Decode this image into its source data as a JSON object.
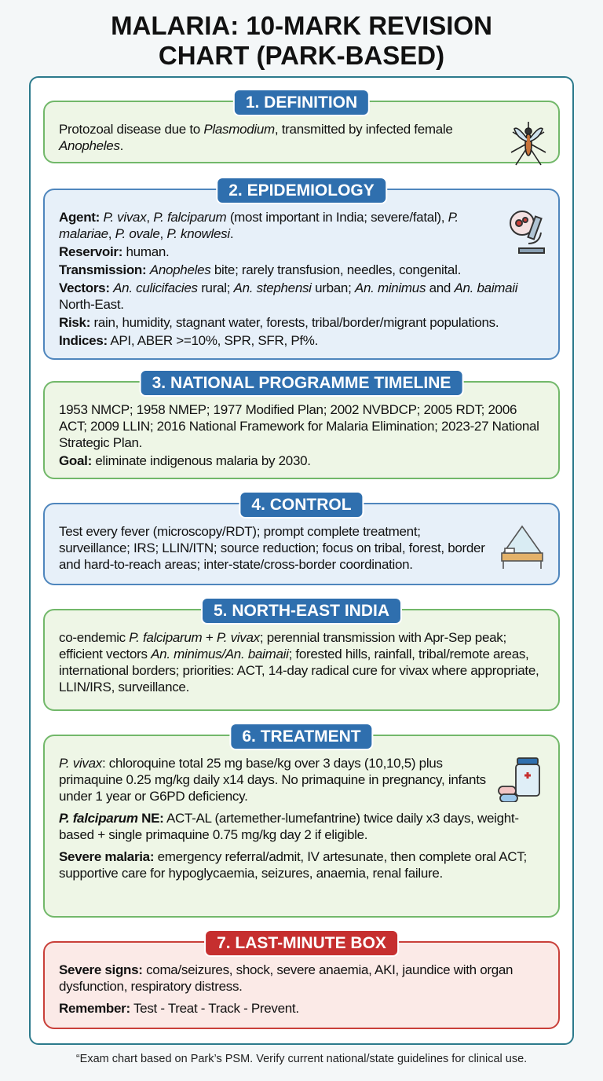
{
  "title": "MALARIA: 10-MARK REVISION CHART (PARK-BASED)",
  "sections": [
    {
      "heading": "1. DEFINITION",
      "paragraphs": [
        [
          {
            "text": "Protozoal disease due to "
          },
          {
            "text": "Plasmodium",
            "style": "italic"
          },
          {
            "text": ", transmitted by infected female "
          },
          {
            "text": "Anopheles",
            "style": "italic"
          },
          {
            "text": "."
          }
        ]
      ]
    },
    {
      "heading": "2. EPIDEMIOLOGY",
      "paragraphs": [
        [
          {
            "text": "Agent:",
            "style": "bold"
          },
          {
            "text": " "
          },
          {
            "text": "P. vivax",
            "style": "italic"
          },
          {
            "text": ", "
          },
          {
            "text": "P. falciparum",
            "style": "italic"
          },
          {
            "text": " (most important in India; severe/fatal), "
          },
          {
            "text": "P. malariae",
            "style": "italic"
          },
          {
            "text": ", "
          },
          {
            "text": "P. ovale",
            "style": "italic"
          },
          {
            "text": ", "
          },
          {
            "text": "P. knowlesi",
            "style": "italic"
          },
          {
            "text": "."
          }
        ],
        [
          {
            "text": "Reservoir:",
            "style": "bold"
          },
          {
            "text": " human."
          }
        ],
        [
          {
            "text": "Transmission:",
            "style": "bold"
          },
          {
            "text": " "
          },
          {
            "text": "Anopheles",
            "style": "italic"
          },
          {
            "text": " bite; rarely transfusion, needles, congenital."
          }
        ],
        [
          {
            "text": "Vectors:",
            "style": "bold"
          },
          {
            "text": " "
          },
          {
            "text": "An. culicifacies",
            "style": "italic"
          },
          {
            "text": " rural; "
          },
          {
            "text": "An. stephensi",
            "style": "italic"
          },
          {
            "text": " urban; "
          },
          {
            "text": "An. minimus",
            "style": "italic"
          },
          {
            "text": " and "
          },
          {
            "text": "An. baimaii",
            "style": "italic"
          },
          {
            "text": " North-East."
          }
        ],
        [
          {
            "text": "Risk:",
            "style": "bold"
          },
          {
            "text": " rain, humidity, stagnant water, forests, tribal/border/migrant populations."
          }
        ],
        [
          {
            "text": "Indices:",
            "style": "bold"
          },
          {
            "text": " API, ABER >=10%, SPR, SFR, Pf%."
          }
        ]
      ]
    },
    {
      "heading": "3. NATIONAL PROGRAMME TIMELINE",
      "paragraphs": [
        [
          {
            "text": "1953 NMCP; 1958 NMEP; 1977 Modified Plan; 2002 NVBDCP; 2005 RDT; 2006 ACT; 2009 LLIN; 2016 National Framework for Malaria Elimination; 2023-27 National Strategic Plan."
          }
        ],
        [
          {
            "text": "Goal:",
            "style": "bold"
          },
          {
            "text": " eliminate indigenous malaria by 2030."
          }
        ]
      ]
    },
    {
      "heading": "4. CONTROL",
      "paragraphs": [
        [
          {
            "text": "Test every fever (microscopy/RDT); prompt complete treatment; surveillance; IRS; LLIN/ITN; source reduction; focus on tribal, forest, border and hard-to-reach areas; inter-state/cross-border coordination."
          }
        ]
      ]
    },
    {
      "heading": "5. NORTH-EAST INDIA",
      "paragraphs": [
        [
          {
            "text": "co-endemic "
          },
          {
            "text": "P. falciparum",
            "style": "italic"
          },
          {
            "text": " + "
          },
          {
            "text": "P. vivax",
            "style": "italic"
          },
          {
            "text": "; perennial transmission with Apr-Sep peak; efficient vectors "
          },
          {
            "text": "An. minimus/An. baimaii",
            "style": "italic"
          },
          {
            "text": "; forested hills, rainfall, tribal/remote areas, international borders; priorities: ACT, 14-day radical cure for vivax where appropriate, LLIN/IRS, surveillance."
          }
        ]
      ]
    },
    {
      "heading": "6. TREATMENT",
      "paragraphs": [
        [
          {
            "text": "P. vivax",
            "style": "italic"
          },
          {
            "text": ": chloroquine total 25 mg base/kg over 3 days (10,10,5) plus primaquine 0.25 mg/kg daily x14 days. No primaquine in pregnancy, infants under 1 year or G6PD deficiency."
          }
        ],
        [
          {
            "text": "P. falciparum",
            "style": "bold-italic"
          },
          {
            "text": " NE:",
            "style": "bold"
          },
          {
            "text": " ACT-AL (artemether-lumefantrine) twice daily x3 days, weight-based + single primaquine 0.75 mg/kg day 2 if eligible."
          }
        ],
        [
          {
            "text": "Severe malaria:",
            "style": "bold"
          },
          {
            "text": " emergency referral/admit, IV artesunate, then complete oral ACT; supportive care for hypoglycaemia, seizures, anaemia, renal failure."
          }
        ]
      ]
    },
    {
      "heading": "7. LAST-MINUTE BOX",
      "paragraphs": [
        [
          {
            "text": "Severe signs:",
            "style": "bold"
          },
          {
            "text": " coma/seizures, shock, severe anaemia, AKI, jaundice with organ dysfunction, respiratory distress."
          }
        ],
        [
          {
            "text": "Remember:",
            "style": "bold"
          },
          {
            "text": " Test - Treat - Track - Prevent."
          }
        ]
      ]
    }
  ],
  "footer": "“Exam chart based on Park’s PSM. Verify current national/state guidelines for clinical use."
}
